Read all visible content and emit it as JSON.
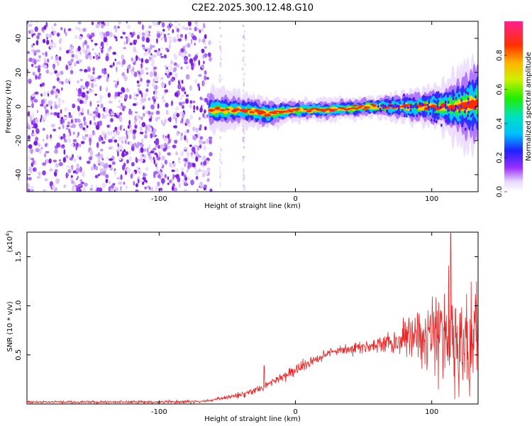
{
  "figure_title": "C2E2.2025.300.12.48.G10",
  "colors": {
    "snr_line": "#ee2222",
    "scatter": "#7a1fe0",
    "frame": "#000000"
  },
  "chart_data": [
    {
      "type": "heatmap",
      "name": "spectrogram",
      "xlabel": "Height of straight line (km)",
      "ylabel": "Frequency (Hz)",
      "xlim": [
        -197,
        134
      ],
      "ylim": [
        -50,
        50
      ],
      "xticks": [
        -100,
        0,
        100
      ],
      "xtick_labels": [
        "-100",
        "0",
        "100"
      ],
      "yticks": [
        -40,
        -20,
        0,
        20,
        40
      ],
      "ytick_labels": [
        "-40",
        "-20",
        "0",
        "20",
        "40"
      ],
      "noise_region_x": [
        -197,
        -62
      ],
      "ridge_x": [
        -62,
        134
      ],
      "ridge": {
        "x": [
          -62,
          -40,
          -20,
          0,
          20,
          40,
          60,
          80,
          100,
          120,
          134
        ],
        "y": [
          -2,
          -2,
          -4,
          -2,
          -2,
          -1,
          0,
          0,
          0,
          0,
          2
        ],
        "halfwidth_hz": [
          4,
          3,
          3,
          2,
          2,
          2,
          2,
          3,
          4,
          7,
          10
        ]
      },
      "colorbar": {
        "label": "Normalized spectral amplitude",
        "range": [
          0,
          1
        ],
        "ticks": [
          0.0,
          0.2,
          0.4,
          0.6,
          0.8
        ],
        "tick_labels": [
          "0.0",
          "0.2",
          "0.4",
          "0.6",
          "0.8"
        ]
      }
    },
    {
      "type": "line",
      "name": "snr",
      "xlabel": "Height of straight line (km)",
      "ylabel": "SNR (10 * v/v)",
      "multiplier_label": "(x10",
      "multiplier_exp": "4",
      "multiplier_close": ")",
      "xlim": [
        -197,
        134
      ],
      "ylim": [
        0,
        1.75
      ],
      "xticks": [
        -100,
        0,
        100
      ],
      "xtick_labels": [
        "-100",
        "0",
        "100"
      ],
      "yticks": [
        0.5,
        1.0,
        1.5
      ],
      "ytick_labels": [
        "0.5",
        "1.0",
        "1.5"
      ],
      "trend": {
        "x": [
          -197,
          -100,
          -70,
          -60,
          -50,
          -40,
          -30,
          -20,
          -10,
          0,
          10,
          20,
          30,
          40,
          50,
          60,
          70,
          80,
          90,
          100,
          110,
          120,
          130,
          134
        ],
        "y": [
          0.02,
          0.02,
          0.025,
          0.04,
          0.07,
          0.1,
          0.14,
          0.2,
          0.27,
          0.34,
          0.42,
          0.5,
          0.55,
          0.56,
          0.58,
          0.6,
          0.63,
          0.66,
          0.68,
          0.7,
          0.68,
          0.66,
          0.64,
          0.64
        ]
      },
      "noise_amplitude": {
        "x": [
          -197,
          -60,
          -20,
          0,
          40,
          60,
          70,
          80,
          90,
          100,
          110,
          120,
          130,
          134
        ],
        "y": [
          0.01,
          0.015,
          0.04,
          0.06,
          0.05,
          0.06,
          0.12,
          0.2,
          0.3,
          0.4,
          0.5,
          0.6,
          0.55,
          0.5
        ]
      },
      "annotations": [
        {
          "x": -23,
          "y": 0.39,
          "note": "isolated spike"
        },
        {
          "x": 114,
          "y": 1.74,
          "note": "peak spike"
        }
      ]
    }
  ]
}
